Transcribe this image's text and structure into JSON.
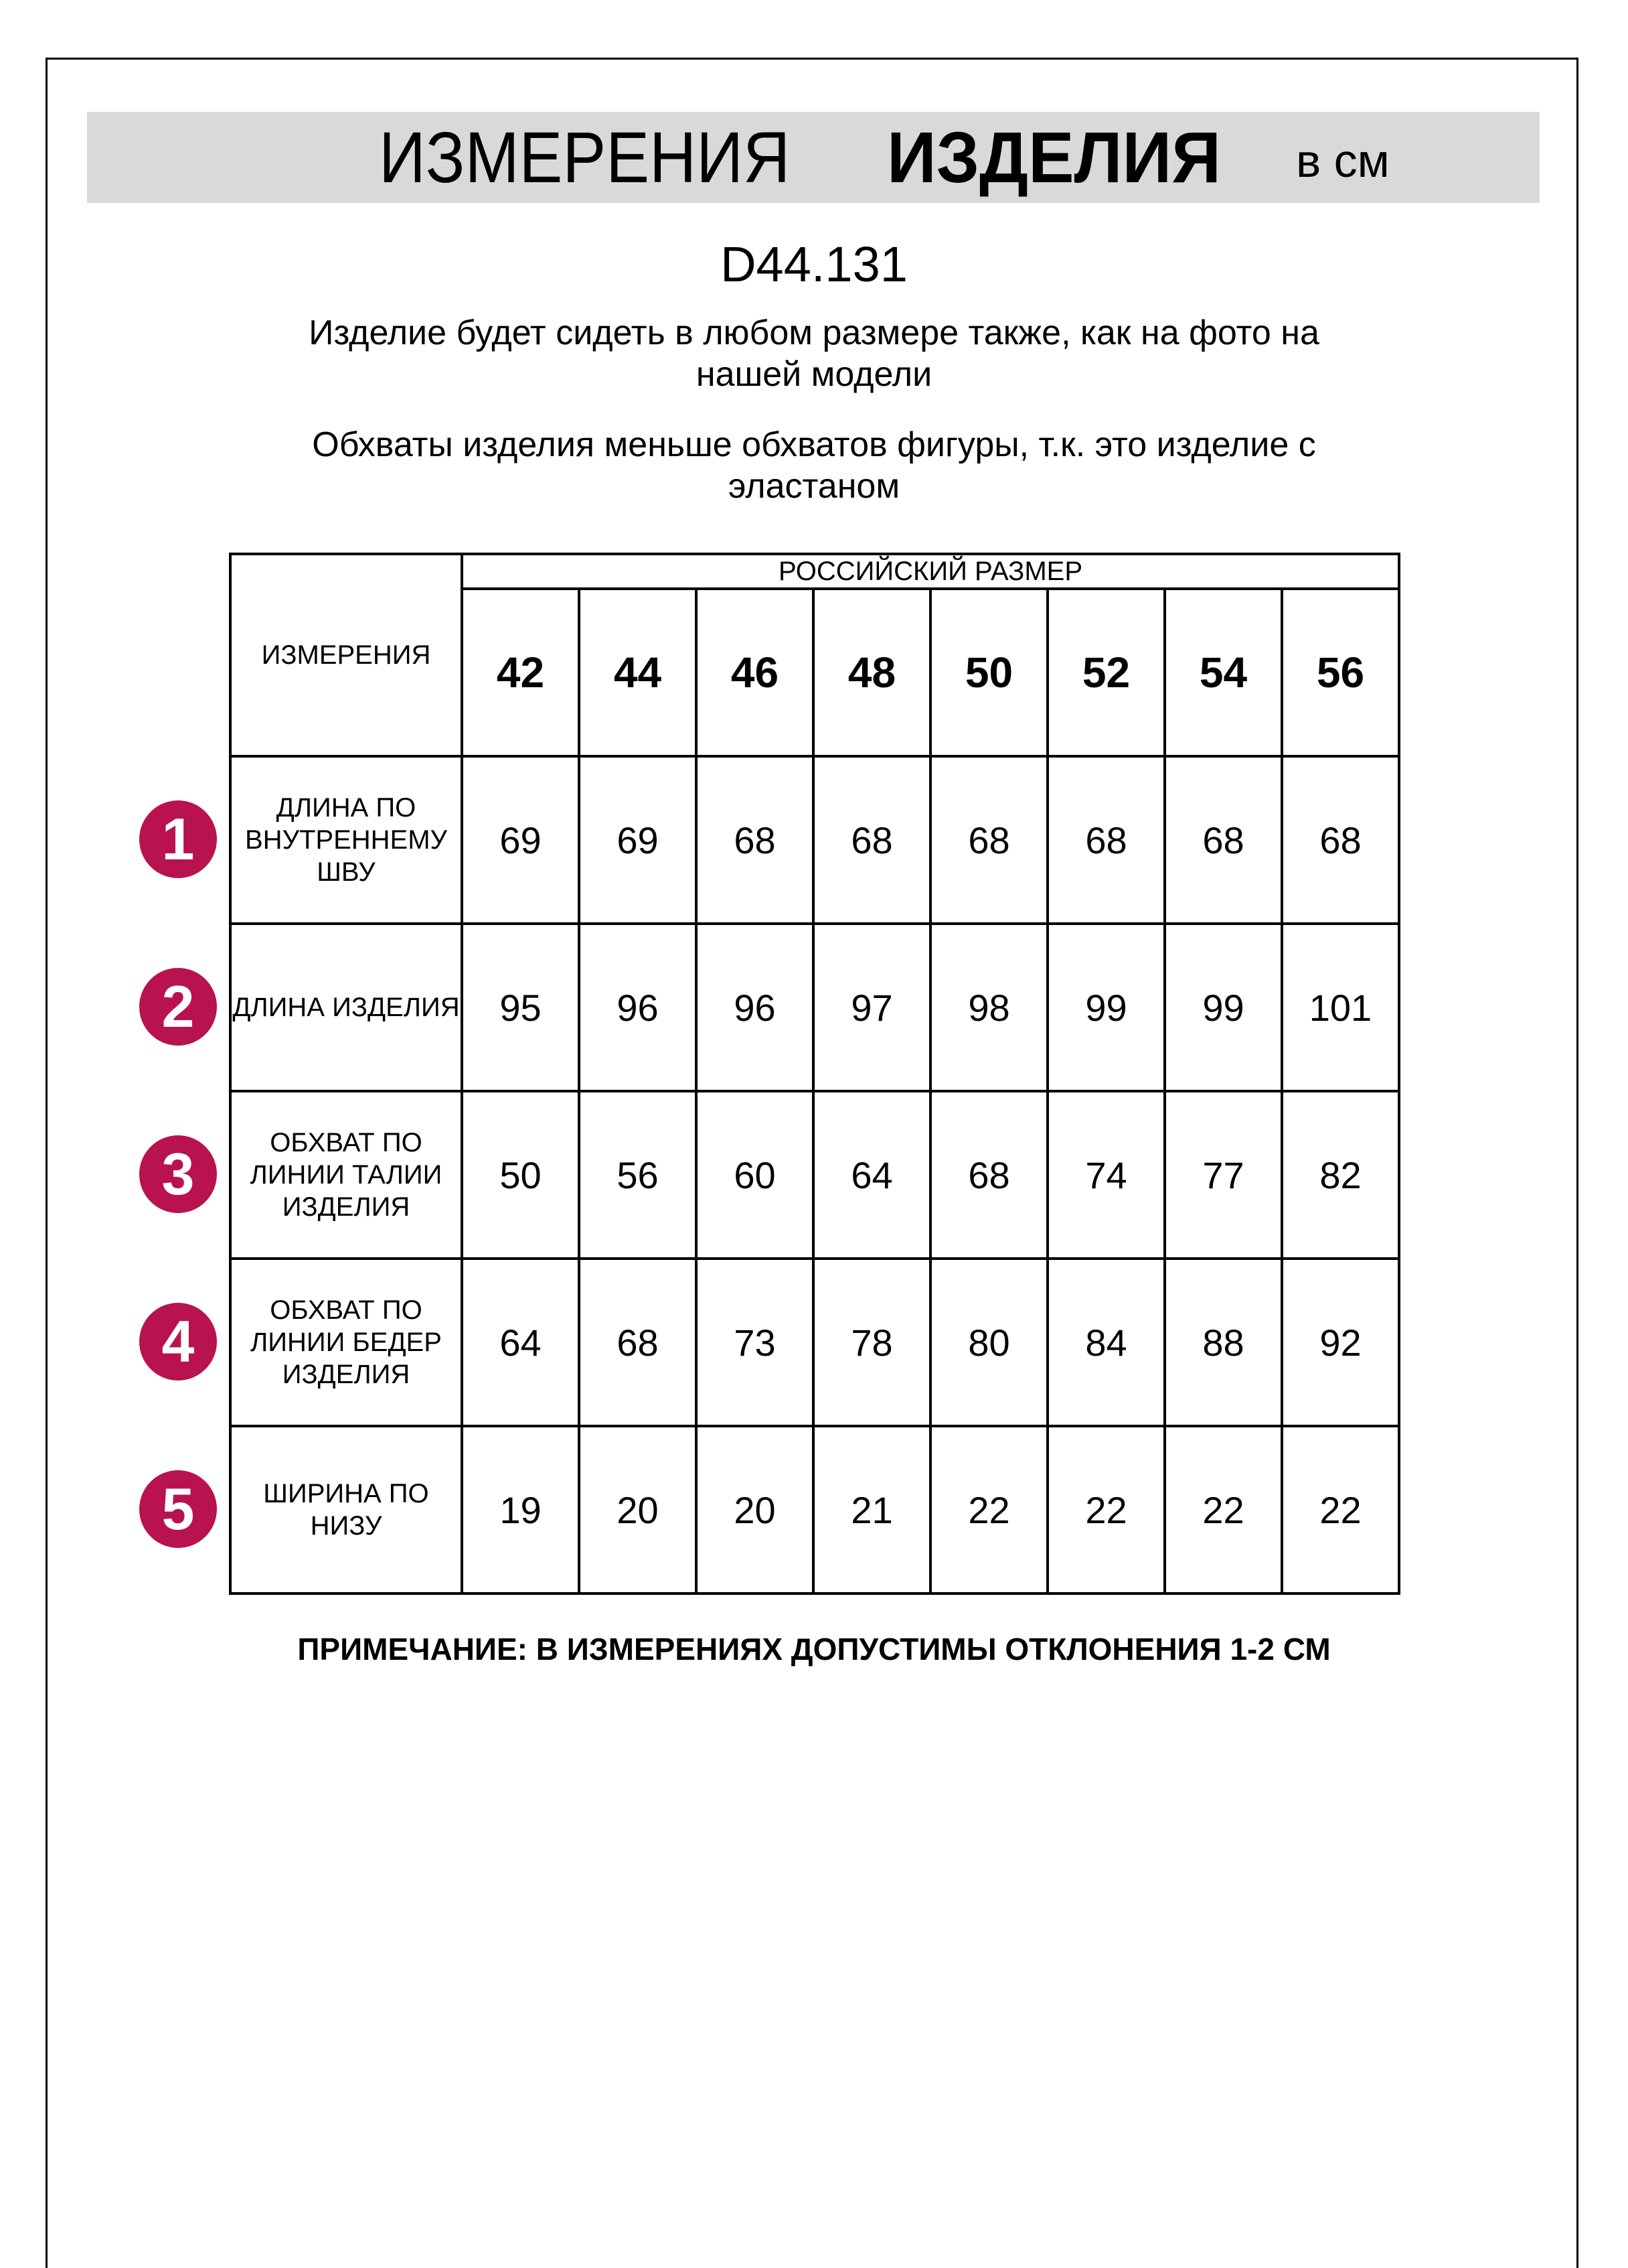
{
  "header": {
    "title_regular": "ИЗМЕРЕНИЯ",
    "title_bold": "ИЗДЕЛИЯ",
    "unit": "в см",
    "band_color": "#d9d9d9"
  },
  "product_code": "D44.131",
  "paragraph_1": "Изделие будет сидеть в любом размере также, как на фото на нашей модели",
  "paragraph_2": "Обхваты изделия меньше обхватов фигуры, т.к. это изделие с эластаном",
  "table": {
    "corner_label": "ИЗМЕРЕНИЯ",
    "size_group_label": "РОССИЙСКИЙ РАЗМЕР",
    "sizes": [
      "42",
      "44",
      "46",
      "48",
      "50",
      "52",
      "54",
      "56"
    ],
    "badge_color": "#b8124f",
    "rows": [
      {
        "number": "1",
        "label": "ДЛИНА ПО ВНУТРЕННЕМУ ШВУ",
        "values": [
          "69",
          "69",
          "68",
          "68",
          "68",
          "68",
          "68",
          "68"
        ]
      },
      {
        "number": "2",
        "label": "ДЛИНА ИЗДЕЛИЯ",
        "values": [
          "95",
          "96",
          "96",
          "97",
          "98",
          "99",
          "99",
          "101"
        ]
      },
      {
        "number": "3",
        "label": "ОБХВАТ ПО ЛИНИИ ТАЛИИ ИЗДЕЛИЯ",
        "values": [
          "50",
          "56",
          "60",
          "64",
          "68",
          "74",
          "77",
          "82"
        ]
      },
      {
        "number": "4",
        "label": "ОБХВАТ ПО ЛИНИИ БЕДЕР ИЗДЕЛИЯ",
        "values": [
          "64",
          "68",
          "73",
          "78",
          "80",
          "84",
          "88",
          "92"
        ]
      },
      {
        "number": "5",
        "label": "ШИРИНА ПО НИЗУ",
        "values": [
          "19",
          "20",
          "20",
          "21",
          "22",
          "22",
          "22",
          "22"
        ]
      }
    ]
  },
  "note": "ПРИМЕЧАНИЕ: В ИЗМЕРЕНИЯХ ДОПУСТИМЫ ОТКЛОНЕНИЯ 1-2 СМ"
}
